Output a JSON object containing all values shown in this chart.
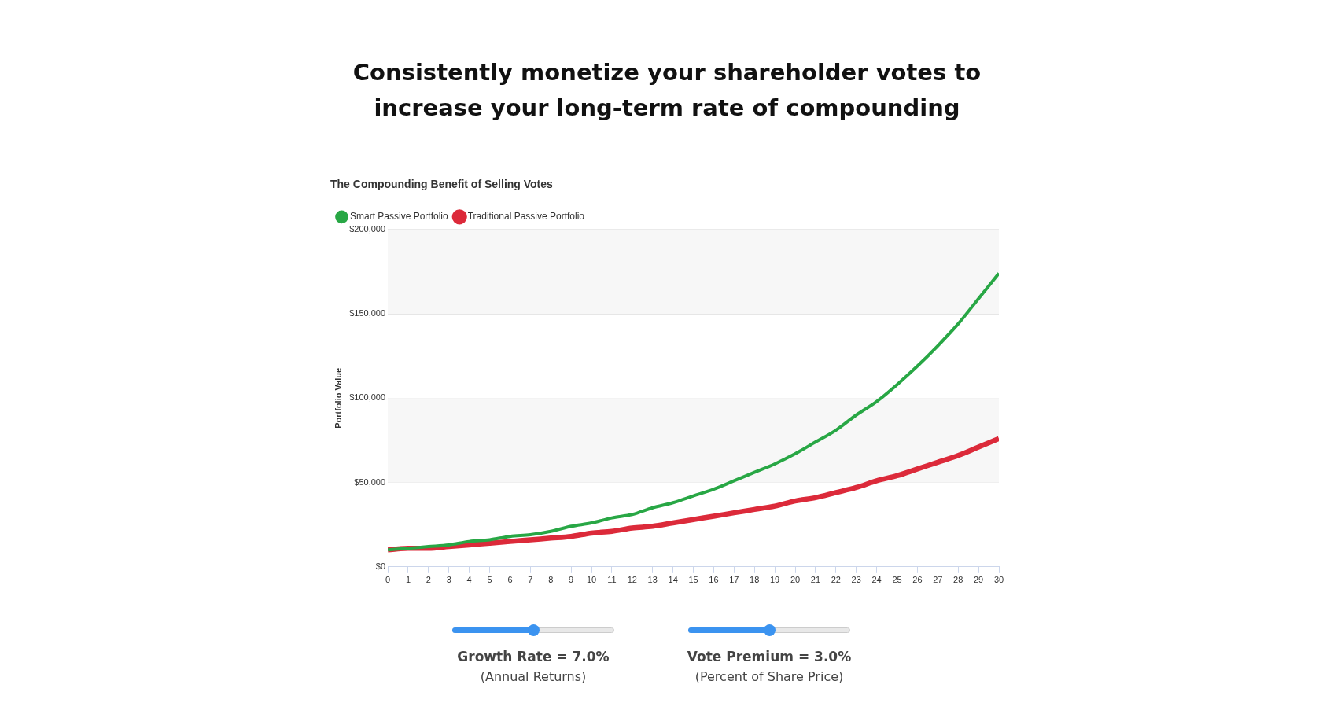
{
  "chart_data": {
    "type": "line",
    "title": "Consistently monetize your shareholder votes to increase your long-term rate of compounding",
    "subtitle": "The Compounding Benefit of Selling Votes",
    "ylabel": "Portfolio Value",
    "x": [
      0,
      1,
      2,
      3,
      4,
      5,
      6,
      7,
      8,
      9,
      10,
      11,
      12,
      13,
      14,
      15,
      16,
      17,
      18,
      19,
      20,
      21,
      22,
      23,
      24,
      25,
      26,
      27,
      28,
      29,
      30
    ],
    "series": [
      {
        "name": "Smart Passive Portfolio",
        "color": "#28a745",
        "values": [
          10000,
          11000,
          12000,
          13000,
          15000,
          16000,
          18000,
          19000,
          21000,
          24000,
          26000,
          29000,
          31000,
          35000,
          38000,
          42000,
          46000,
          51000,
          56000,
          61000,
          67000,
          74000,
          81000,
          90000,
          98000,
          108000,
          119000,
          131000,
          144000,
          159000,
          174000
        ]
      },
      {
        "name": "Traditional Passive Portfolio",
        "color": "#dc2a3a",
        "values": [
          10000,
          11000,
          11000,
          12000,
          13000,
          14000,
          15000,
          16000,
          17000,
          18000,
          20000,
          21000,
          23000,
          24000,
          26000,
          28000,
          30000,
          32000,
          34000,
          36000,
          39000,
          41000,
          44000,
          47000,
          51000,
          54000,
          58000,
          62000,
          66000,
          71000,
          76000
        ]
      }
    ],
    "xlim": [
      0,
      30
    ],
    "xticks": [
      0,
      1,
      2,
      3,
      4,
      5,
      6,
      7,
      8,
      9,
      10,
      11,
      12,
      13,
      14,
      15,
      16,
      17,
      18,
      19,
      20,
      21,
      22,
      23,
      24,
      25,
      26,
      27,
      28,
      29,
      30
    ],
    "ylim": [
      0,
      200000
    ],
    "yticks": [
      {
        "value": 0,
        "label": "$0"
      },
      {
        "value": 50000,
        "label": "$50,000"
      },
      {
        "value": 100000,
        "label": "$100,000"
      },
      {
        "value": 150000,
        "label": "$150,000"
      },
      {
        "value": 200000,
        "label": "$200,000"
      }
    ],
    "bands": [
      {
        "axis": "y",
        "from": 50000,
        "to": 100000,
        "color": "#f7f7f7"
      },
      {
        "axis": "y",
        "from": 150000,
        "to": 200000,
        "color": "#f7f7f7"
      }
    ],
    "grid": "y",
    "legend": "top left",
    "marker": "none",
    "line_style": "solid",
    "annotations": [
      "Growth Rate = 7.0%",
      "(Annual Returns)",
      "Vote Premium = 3.0%",
      "(Percent of Share Price)"
    ]
  }
}
